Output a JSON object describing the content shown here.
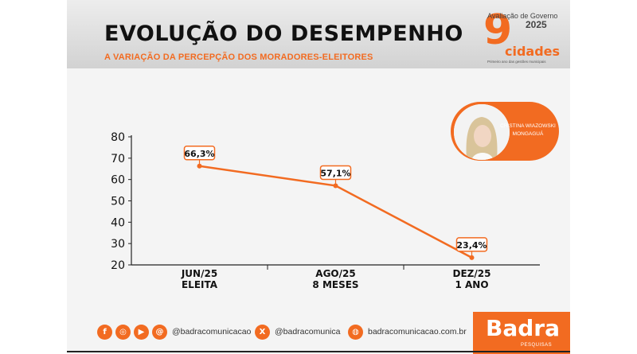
{
  "header": {
    "title": "EVOLUÇÃO DO DESEMPENHO",
    "subtitle": "A VARIAÇÃO DA PERCEPÇÃO DOS MORADORES-ELEITORES",
    "brand_top": "Avaliação de Governo",
    "brand_year": "2025",
    "brand_number": "9",
    "brand_word": "cidades",
    "brand_tagline": "Primeiro ano das gestões municipais"
  },
  "person": {
    "name_line1": "CRISTINA WIAZOWSKI",
    "name_line2": "MONGAGUÁ"
  },
  "colors": {
    "accent": "#f26b21",
    "text": "#111111"
  },
  "chart_data": {
    "type": "line",
    "categories": [
      [
        "JUN/25",
        "ELEITA"
      ],
      [
        "AGO/25",
        "8 MESES"
      ],
      [
        "DEZ/25",
        "1 ANO"
      ]
    ],
    "values": [
      66.3,
      57.1,
      23.4
    ],
    "data_labels": [
      "66,3%",
      "57,1%",
      "23,4%"
    ],
    "yticks": [
      20,
      30,
      40,
      50,
      60,
      70,
      80
    ],
    "ylim": [
      20,
      80
    ],
    "grid": false
  },
  "footer": {
    "handle": "@badracomunicacao",
    "x_handle": "@badracomunica",
    "site": "badracomunicacao.com.br",
    "icons": [
      "facebook-icon",
      "instagram-icon",
      "youtube-icon",
      "threads-icon",
      "x-icon",
      "web-icon"
    ],
    "brand": "Badra",
    "brand_sub": "PESQUISAS"
  }
}
